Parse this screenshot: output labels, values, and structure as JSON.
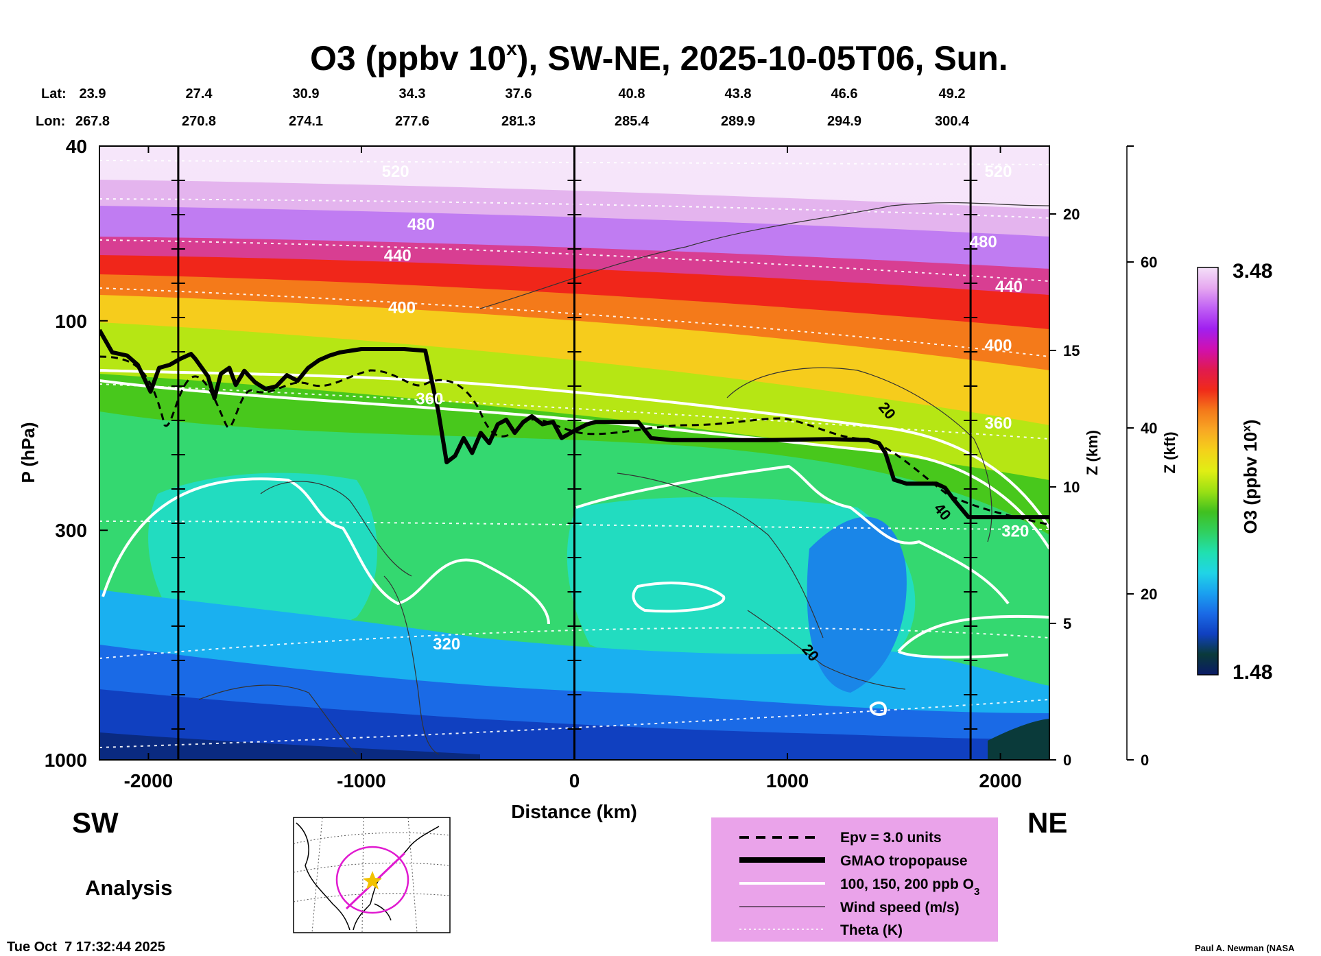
{
  "title_parts": {
    "a": "O3 (ppbv 10",
    "sup": "x",
    "b": "), SW-NE, 2025-10-05T06, Sun."
  },
  "header": {
    "lat_label": "Lat:",
    "lon_label": "Lon:",
    "lats": [
      "23.9",
      "27.4",
      "30.9",
      "34.3",
      "37.6",
      "40.8",
      "43.8",
      "46.6",
      "49.2"
    ],
    "lons": [
      "267.8",
      "270.8",
      "274.1",
      "277.6",
      "281.3",
      "285.4",
      "289.9",
      "294.9",
      "300.4"
    ]
  },
  "side_labels": {
    "left": "SW",
    "right": "NE",
    "mode": "Analysis"
  },
  "footer": {
    "timestamp": "Tue Oct  7 17:32:44 2025",
    "credit": "Paul A. Newman (NASA"
  },
  "legend": {
    "epv": "Epv = 3.0 units",
    "tropopause": "GMAO tropopause",
    "o3_prefix": "100, 150, 200 ppb O",
    "o3_sub": "3",
    "wind": "Wind speed (m/s)",
    "theta": "Theta (K)"
  },
  "colors": {
    "legend_bg": "#eaa3ea",
    "map_circle": "#e01ad0",
    "map_star": "#f2c200",
    "colorbar": [
      "#0a1a66",
      "#0a3a3a",
      "#1040c0",
      "#1a6ae6",
      "#1aa0f0",
      "#20d4e6",
      "#20e0b0",
      "#30d060",
      "#40c020",
      "#9ae014",
      "#e0ee14",
      "#f4d21a",
      "#f8a824",
      "#f4781a",
      "#f02a1a",
      "#e01a50",
      "#d010b0",
      "#a020f0",
      "#c060f4",
      "#e6a8f0",
      "#f4e0f8"
    ]
  },
  "chart_data": {
    "type": "heatmap",
    "title": "O3 (ppbv 10^x), SW-NE, 2025-10-05T06, Sun.",
    "xlabel": "Distance (km)",
    "ylabel": "P (hPa)",
    "xlim": [
      -2230,
      2230
    ],
    "ylim": [
      1000,
      40
    ],
    "x_ticks": [
      "-2000",
      "-1000",
      "0",
      "1000",
      "2000"
    ],
    "x_tick_values": [
      -2000,
      -1000,
      0,
      1000,
      2000
    ],
    "p_ticks": [
      "40",
      "100",
      "300",
      "1000"
    ],
    "p_tick_values": [
      40,
      100,
      300,
      1000
    ],
    "z_km_label": "Z (km)",
    "z_km_ticks": [
      "0",
      "5",
      "10",
      "15",
      "20"
    ],
    "z_km_values": [
      0,
      5,
      10,
      15,
      20
    ],
    "z_kft_label": "Z (kft)",
    "z_kft_ticks": [
      "0",
      "20",
      "40",
      "60"
    ],
    "z_kft_values": [
      0,
      20,
      40,
      60
    ],
    "section_distances_km": [
      -1860,
      0,
      1860
    ],
    "colorbar": {
      "label": "O3 (ppbv 10",
      "label_sup": "x",
      "label_end": ")",
      "min": "1.48",
      "max": "3.48"
    },
    "theta_labels": [
      {
        "text": "520",
        "x": -840,
        "p": 47
      },
      {
        "text": "480",
        "x": -720,
        "p": 62
      },
      {
        "text": "440",
        "x": -830,
        "p": 73
      },
      {
        "text": "400",
        "x": -810,
        "p": 96
      },
      {
        "text": "360",
        "x": -680,
        "p": 155
      },
      {
        "text": "320",
        "x": -600,
        "p": 560
      },
      {
        "text": "520",
        "x": 1990,
        "p": 47
      },
      {
        "text": "480",
        "x": 1920,
        "p": 68
      },
      {
        "text": "440",
        "x": 2040,
        "p": 86
      },
      {
        "text": "400",
        "x": 1990,
        "p": 117
      },
      {
        "text": "360",
        "x": 1990,
        "p": 176
      },
      {
        "text": "320",
        "x": 2070,
        "p": 310
      }
    ],
    "wind_labels": [
      {
        "text": "20",
        "x": 1450,
        "p": 163
      },
      {
        "text": "40",
        "x": 1710,
        "p": 277
      },
      {
        "text": "20",
        "x": 1090,
        "p": 580
      }
    ],
    "tropopause": {
      "x": [
        -2230,
        -2170,
        -2100,
        -2050,
        -1990,
        -1950,
        -1900,
        -1850,
        -1800,
        -1780,
        -1720,
        -1690,
        -1660,
        -1620,
        -1590,
        -1550,
        -1500,
        -1450,
        -1400,
        -1350,
        -1300,
        -1250,
        -1200,
        -1150,
        -1100,
        -1050,
        -1000,
        -900,
        -800,
        -700,
        -640,
        -600,
        -560,
        -520,
        -480,
        -440,
        -400,
        -360,
        -320,
        -280,
        -240,
        -200,
        -150,
        -100,
        -60,
        0,
        60,
        100,
        200,
        300,
        360,
        460,
        900,
        1200,
        1380,
        1430,
        1460,
        1500,
        1560,
        1650,
        1700,
        1740,
        1780,
        1850,
        1900,
        2000,
        2230
      ],
      "p": [
        105,
        118,
        120,
        126,
        145,
        128,
        126,
        122,
        119,
        122,
        134,
        150,
        132,
        128,
        140,
        130,
        138,
        143,
        141,
        133,
        137,
        128,
        123,
        120,
        118,
        117,
        116,
        116,
        116,
        117,
        160,
        210,
        203,
        185,
        200,
        180,
        190,
        172,
        168,
        180,
        170,
        165,
        172,
        170,
        185,
        178,
        172,
        170,
        170,
        170,
        185,
        187,
        187,
        186,
        187,
        190,
        200,
        230,
        235,
        235,
        235,
        240,
        255,
        280,
        280,
        280,
        280
      ]
    }
  },
  "map": {
    "kind": "locator map, North America with SW-NE section path"
  }
}
